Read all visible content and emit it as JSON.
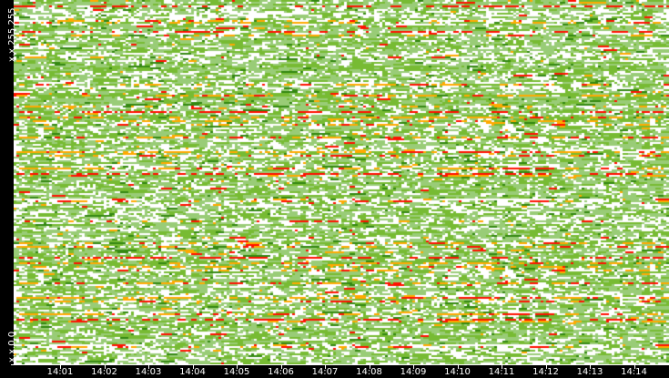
{
  "chart_data": {
    "type": "heatmap",
    "title": "",
    "y_labels": {
      "top": "x.x.255.255",
      "bottom": "x.x.0.0"
    },
    "x_ticks": [
      "14:01",
      "14:02",
      "14:03",
      "14:04",
      "14:05",
      "14:06",
      "14:07",
      "14:08",
      "14:09",
      "14:10",
      "14:11",
      "14:12",
      "14:13",
      "14:14"
    ],
    "palette": {
      "empty": "#ffffff",
      "low": "#99cc77",
      "medium": "#77bb33",
      "dark": "#338811",
      "high": "#ffaa00",
      "max": "#ff1100"
    },
    "background": "#000000"
  }
}
